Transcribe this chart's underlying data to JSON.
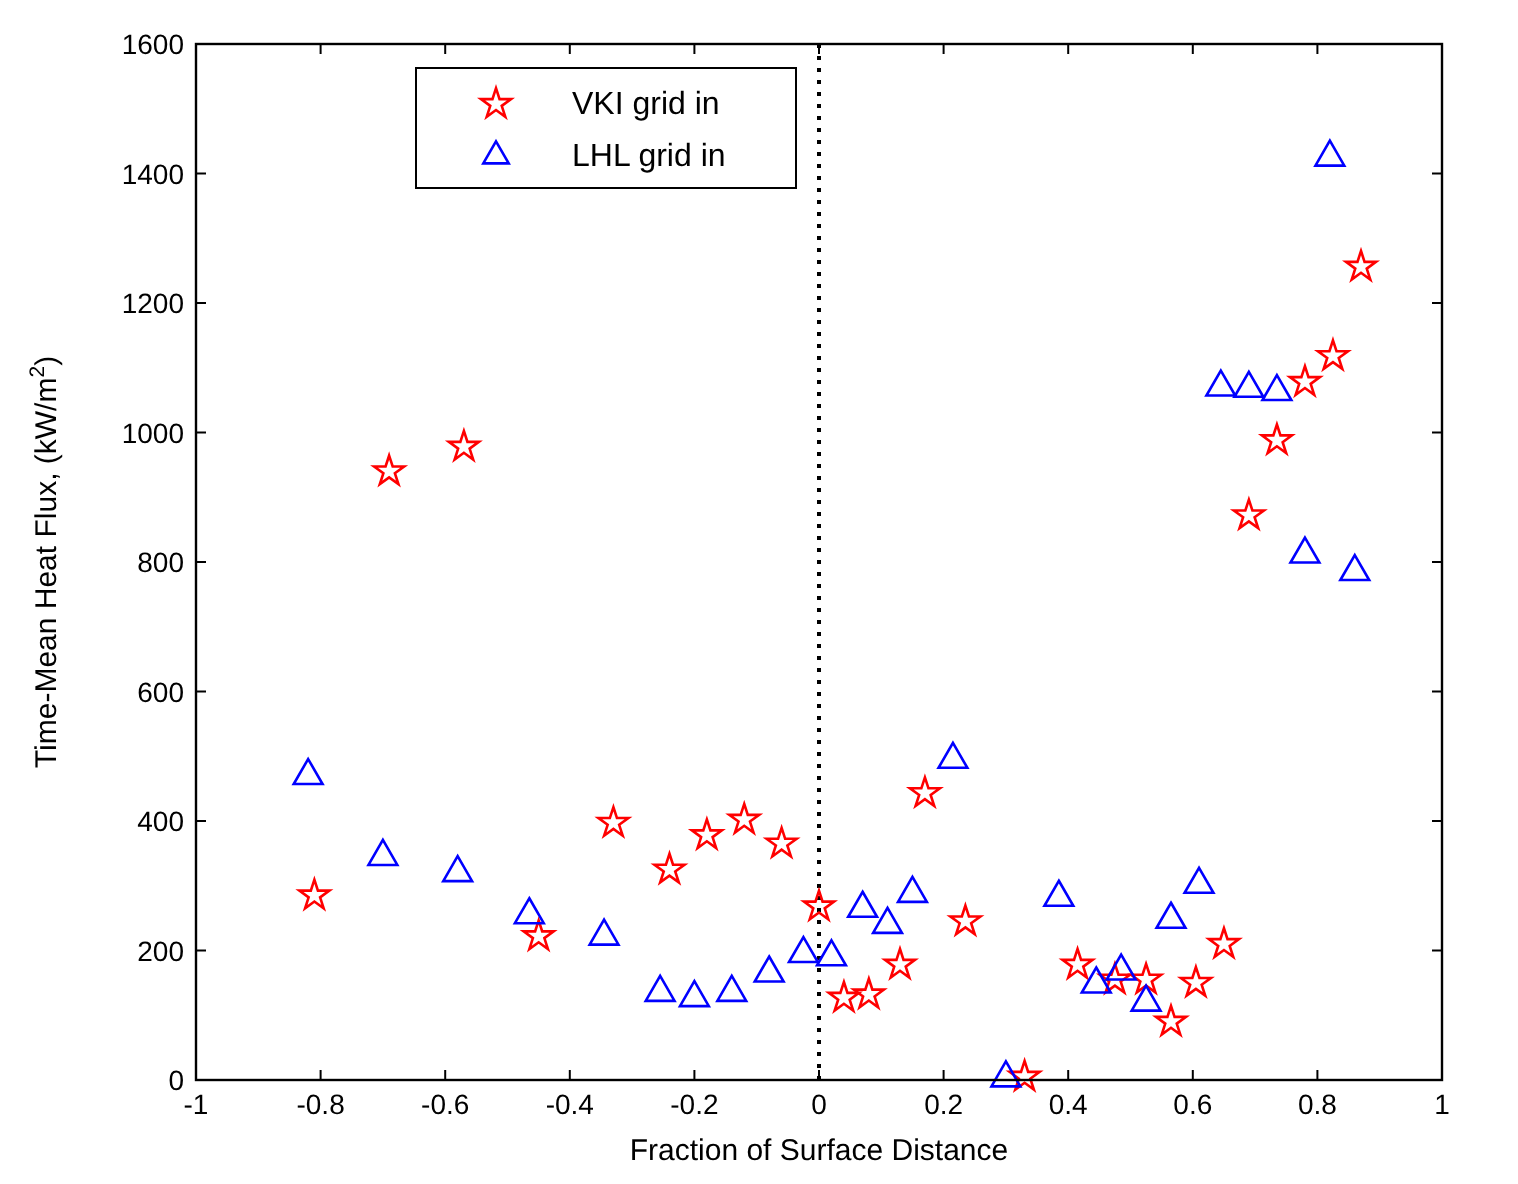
{
  "chart_data": {
    "type": "scatter",
    "xlabel": "Fraction of Surface Distance",
    "ylabel": "Time-Mean Heat Flux, (kW/m$^{2}$)",
    "xlim": [
      -1,
      1
    ],
    "xticks": [
      -1,
      -0.8,
      -0.6,
      -0.4,
      -0.2,
      0,
      0.2,
      0.4,
      0.6,
      0.8,
      1
    ],
    "ylim": [
      0,
      1600
    ],
    "yticks": [
      0,
      200,
      400,
      600,
      800,
      1000,
      1200,
      1400,
      1600
    ],
    "grid": false,
    "legend": "top left",
    "ref_lines": [
      {
        "axis": "x",
        "value": 0,
        "color": "#000000",
        "line_style": "dotted"
      }
    ],
    "series": [
      {
        "name": "VKI grid in",
        "color": "#ff0000",
        "marker": "star",
        "x": [
          -0.81,
          -0.69,
          -0.57,
          -0.45,
          -0.33,
          -0.24,
          -0.18,
          -0.12,
          -0.06,
          0.0,
          0.04,
          0.08,
          0.13,
          0.17,
          0.235,
          0.33,
          0.415,
          0.475,
          0.525,
          0.565,
          0.605,
          0.65,
          0.69,
          0.735,
          0.78,
          0.825,
          0.87
        ],
        "values": [
          285,
          940,
          978,
          222,
          397,
          325,
          378,
          402,
          365,
          268,
          127,
          132,
          178,
          443,
          245,
          5,
          178,
          155,
          155,
          90,
          150,
          210,
          872,
          988,
          1078,
          1118,
          1256
        ]
      },
      {
        "name": "LHL grid in",
        "color": "#0000ff",
        "marker": "triangle",
        "x": [
          -0.82,
          -0.7,
          -0.58,
          -0.465,
          -0.345,
          -0.255,
          -0.2,
          -0.14,
          -0.08,
          -0.025,
          0.02,
          0.07,
          0.11,
          0.15,
          0.215,
          0.3,
          0.385,
          0.445,
          0.485,
          0.525,
          0.565,
          0.61,
          0.645,
          0.69,
          0.735,
          0.78,
          0.82,
          0.86
        ],
        "values": [
          470,
          345,
          320,
          255,
          222,
          135,
          127,
          135,
          165,
          195,
          190,
          265,
          240,
          288,
          495,
          3,
          282,
          148,
          168,
          120,
          248,
          302,
          1070,
          1068,
          1063,
          812,
          1425,
          785
        ]
      }
    ]
  }
}
